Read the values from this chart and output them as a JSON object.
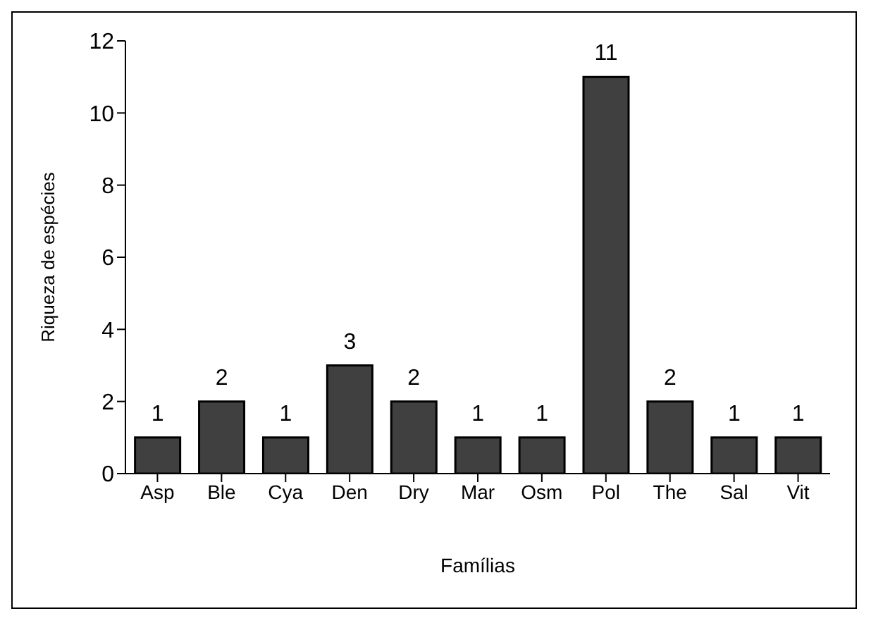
{
  "chart_data": {
    "type": "bar",
    "xlabel": "Famílias",
    "ylabel": "Riqueza de espécies",
    "categories": [
      "Asp",
      "Ble",
      "Cya",
      "Den",
      "Dry",
      "Mar",
      "Osm",
      "Pol",
      "The",
      "Sal",
      "Vit"
    ],
    "values": [
      1,
      2,
      1,
      3,
      2,
      1,
      1,
      11,
      2,
      1,
      1
    ],
    "color": "#404040",
    "ylim": [
      0,
      12
    ],
    "yticks": [
      0,
      2,
      4,
      6,
      8,
      10,
      12
    ],
    "grid": false,
    "data_labels": true
  }
}
